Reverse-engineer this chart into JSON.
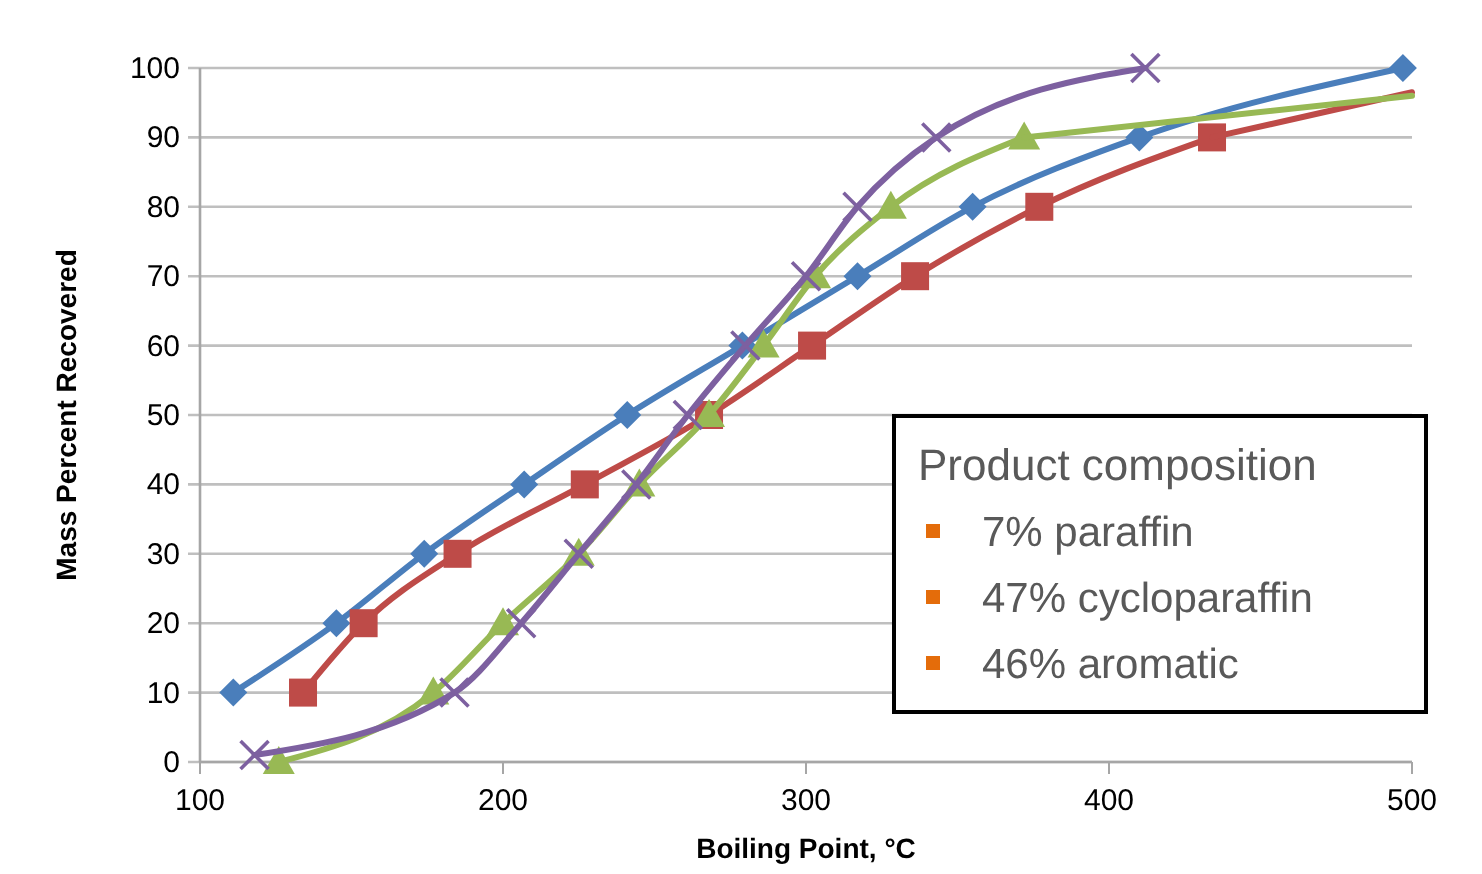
{
  "chart_data": {
    "type": "line",
    "xlabel": "Boiling Point, °C",
    "ylabel": "Mass Percent Recovered",
    "xlim": [
      100,
      500
    ],
    "xticks": [
      100,
      200,
      300,
      400,
      500
    ],
    "ylim": [
      0,
      100
    ],
    "yticks": [
      0,
      10,
      20,
      30,
      40,
      50,
      60,
      70,
      80,
      90,
      100
    ],
    "grid": "y",
    "series": [
      {
        "color": "#4a7ebb",
        "marker": "diamond",
        "x": [
          111,
          145,
          174,
          207,
          241,
          279,
          317,
          355,
          410,
          497
        ],
        "values": [
          10,
          20,
          30,
          40,
          50,
          60,
          70,
          80,
          90,
          100
        ]
      },
      {
        "color": "#be4b48",
        "marker": "square",
        "x": [
          134,
          154,
          185,
          227,
          268,
          302,
          336,
          377,
          434
        ],
        "values": [
          10,
          20,
          30,
          40,
          50,
          60,
          70,
          80,
          90
        ]
      },
      {
        "color": "#be4b48",
        "marker": "none",
        "x": [
          434,
          500
        ],
        "values": [
          90,
          96.5
        ]
      },
      {
        "color": "#98b954",
        "marker": "triangle",
        "x": [
          126,
          177,
          200,
          225,
          245,
          268,
          286,
          303,
          328,
          372
        ],
        "values": [
          0,
          10,
          20,
          30,
          40,
          50,
          60,
          70,
          80,
          90
        ]
      },
      {
        "color": "#98b954",
        "marker": "none",
        "x": [
          372,
          500
        ],
        "values": [
          90,
          96
        ]
      },
      {
        "color": "#7d60a0",
        "marker": "cross",
        "x": [
          118,
          184,
          206,
          225,
          244,
          261,
          280,
          300,
          317,
          343,
          412
        ],
        "values": [
          1,
          10,
          20,
          30,
          40,
          50,
          60,
          70,
          80,
          90,
          100
        ]
      }
    ],
    "annotations": [
      "Product composition",
      "7% paraffin",
      "47% cycloparaffin",
      "46% aromatic"
    ]
  }
}
